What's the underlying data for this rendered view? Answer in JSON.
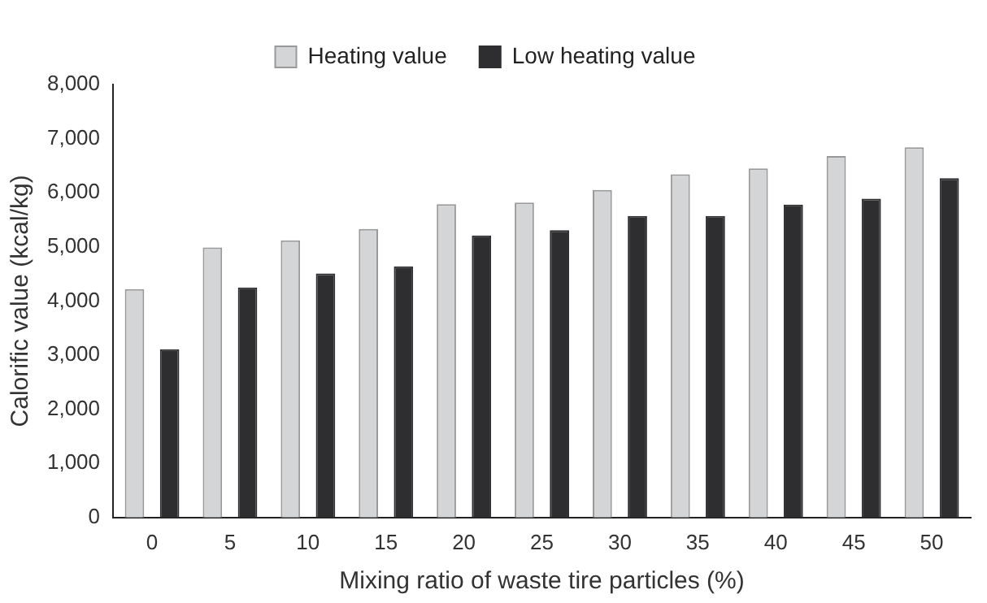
{
  "chart_data": {
    "type": "bar",
    "xlabel": "Mixing ratio of waste tire particles (%)",
    "ylabel": "Calorific value (kcal/kg)",
    "categories": [
      "0",
      "5",
      "10",
      "15",
      "20",
      "25",
      "30",
      "35",
      "40",
      "45",
      "50"
    ],
    "series": [
      {
        "name": "Heating value",
        "color": "#d4d5d7",
        "values": [
          4220,
          4990,
          5120,
          5330,
          5790,
          5820,
          6050,
          6340,
          6450,
          6680,
          6840
        ]
      },
      {
        "name": "Low heating value",
        "color": "#2e2d30",
        "values": [
          3110,
          4250,
          4510,
          4640,
          5210,
          5310,
          5570,
          5570,
          5780,
          5890,
          6270
        ]
      }
    ],
    "ylim": [
      0,
      8000
    ],
    "yticks": [
      0,
      {
        "value": 1000,
        "label": "1,000"
      },
      {
        "value": 2000,
        "label": "2,000"
      },
      {
        "value": 3000,
        "label": "3,000"
      },
      {
        "value": 4000,
        "label": "4,000"
      },
      {
        "value": 5000,
        "label": "5,000"
      },
      {
        "value": 6000,
        "label": "6,000"
      },
      {
        "value": 7000,
        "label": "7,000"
      },
      {
        "value": 8000,
        "label": "8,000"
      }
    ],
    "grid": false,
    "legend": "top"
  }
}
